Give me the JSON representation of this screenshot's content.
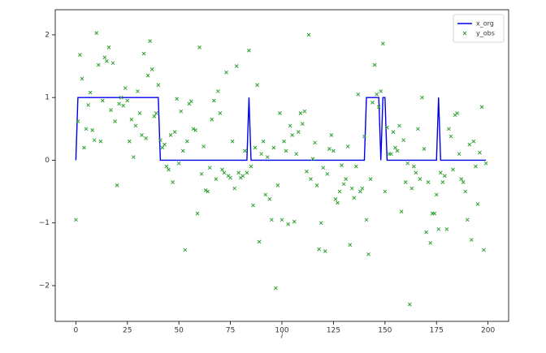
{
  "chart_data": {
    "type": "line",
    "xlabel": "i",
    "x": [
      0,
      1,
      2,
      3,
      4,
      5,
      6,
      7,
      8,
      9,
      10,
      11,
      12,
      13,
      14,
      15,
      16,
      17,
      18,
      19,
      20,
      21,
      22,
      23,
      24,
      25,
      26,
      27,
      28,
      29,
      30,
      31,
      32,
      33,
      34,
      35,
      36,
      37,
      38,
      39,
      40,
      41,
      42,
      43,
      44,
      45,
      46,
      47,
      48,
      49,
      50,
      51,
      52,
      53,
      54,
      55,
      56,
      57,
      58,
      59,
      60,
      61,
      62,
      63,
      64,
      65,
      66,
      67,
      68,
      69,
      70,
      71,
      72,
      73,
      74,
      75,
      76,
      77,
      78,
      79,
      80,
      81,
      82,
      83,
      84,
      85,
      86,
      87,
      88,
      89,
      90,
      91,
      92,
      93,
      94,
      95,
      96,
      97,
      98,
      99,
      100,
      101,
      102,
      103,
      104,
      105,
      106,
      107,
      108,
      109,
      110,
      111,
      112,
      113,
      114,
      115,
      116,
      117,
      118,
      119,
      120,
      121,
      122,
      123,
      124,
      125,
      126,
      127,
      128,
      129,
      130,
      131,
      132,
      133,
      134,
      135,
      136,
      137,
      138,
      139,
      140,
      141,
      142,
      143,
      144,
      145,
      146,
      147,
      148,
      149,
      150,
      151,
      152,
      153,
      154,
      155,
      156,
      157,
      158,
      159,
      160,
      161,
      162,
      163,
      164,
      165,
      166,
      167,
      168,
      169,
      170,
      171,
      172,
      173,
      174,
      175,
      176,
      177,
      178,
      179,
      180,
      181,
      182,
      183,
      184,
      185,
      186,
      187,
      188,
      189,
      190,
      191,
      192,
      193,
      194,
      195,
      196,
      197,
      198,
      199
    ],
    "series": [
      {
        "name": "x_org",
        "color": "#0000ee",
        "style": "line",
        "values": [
          0,
          1,
          1,
          1,
          1,
          1,
          1,
          1,
          1,
          1,
          1,
          1,
          1,
          1,
          1,
          1,
          1,
          1,
          1,
          1,
          1,
          1,
          1,
          1,
          1,
          1,
          1,
          1,
          1,
          1,
          1,
          1,
          1,
          1,
          1,
          1,
          1,
          1,
          1,
          1,
          1,
          0,
          0,
          0,
          0,
          0,
          0,
          0,
          0,
          0,
          0,
          0,
          0,
          0,
          0,
          0,
          0,
          0,
          0,
          0,
          0,
          0,
          0,
          0,
          0,
          0,
          0,
          0,
          0,
          0,
          0,
          0,
          0,
          0,
          0,
          0,
          0,
          0,
          0,
          0,
          0,
          0,
          0,
          0,
          1,
          0,
          0,
          0,
          0,
          0,
          0,
          0,
          0,
          0,
          0,
          0,
          0,
          0,
          0,
          0,
          0,
          0,
          0,
          0,
          0,
          0,
          0,
          0,
          0,
          0,
          0,
          0,
          0,
          0,
          0,
          0,
          0,
          0,
          0,
          0,
          0,
          0,
          0,
          0,
          0,
          0,
          0,
          0,
          0,
          0,
          0,
          0,
          0,
          0,
          0,
          0,
          0,
          0,
          0,
          0,
          0,
          1,
          1,
          1,
          1,
          1,
          1,
          1,
          0,
          1,
          1,
          0,
          0,
          0,
          0,
          0,
          0,
          0,
          0,
          0,
          0,
          0,
          0,
          0,
          0,
          0,
          0,
          0,
          0,
          0,
          0,
          0,
          0,
          0,
          0,
          0,
          1,
          0,
          0,
          0,
          0,
          0,
          0,
          0,
          0,
          0,
          0,
          0,
          0,
          0,
          0,
          0,
          0,
          0,
          0,
          0,
          0,
          0,
          0,
          0
        ]
      },
      {
        "name": "y_obs",
        "color": "#2ca02c",
        "style": "scatter",
        "values": [
          -0.95,
          0.62,
          1.68,
          1.3,
          0.2,
          0.5,
          0.88,
          1.08,
          0.48,
          0.32,
          2.03,
          1.52,
          0.3,
          0.95,
          1.64,
          1.58,
          1.8,
          0.8,
          1.55,
          0.62,
          -0.4,
          0.9,
          1.0,
          0.87,
          1.15,
          0.95,
          0.3,
          0.65,
          0.05,
          0.55,
          1.1,
          0.75,
          0.4,
          1.7,
          0.35,
          1.35,
          1.9,
          1.45,
          0.7,
          0.75,
          1.2,
          0.32,
          0.2,
          0.25,
          -0.1,
          -0.15,
          0.4,
          -0.35,
          0.45,
          0.98,
          -0.05,
          0.78,
          0.15,
          -1.43,
          0.3,
          0.9,
          0.94,
          0.5,
          0.48,
          -0.85,
          1.8,
          -0.22,
          0.22,
          -0.48,
          -0.5,
          -0.12,
          0.65,
          0.95,
          -0.3,
          1.1,
          0.75,
          -0.15,
          -0.2,
          1.4,
          -0.25,
          -0.28,
          0.3,
          -0.45,
          1.5,
          -0.2,
          -0.28,
          -0.25,
          0.15,
          -0.2,
          1.75,
          -0.1,
          -0.72,
          0.2,
          1.2,
          -1.3,
          0.1,
          0.3,
          -0.55,
          0.05,
          -0.62,
          -0.95,
          0.2,
          -2.04,
          -0.4,
          0.75,
          -0.95,
          0.3,
          0.15,
          -1.02,
          0.55,
          0.4,
          -0.98,
          0.1,
          0.45,
          0.75,
          0.58,
          0.78,
          -0.18,
          2.0,
          -0.3,
          0.02,
          0.28,
          -0.4,
          -1.42,
          -1.0,
          -0.12,
          -1.45,
          -0.22,
          0.18,
          0.4,
          0.15,
          -0.62,
          -0.68,
          -0.5,
          -0.08,
          -0.38,
          -0.3,
          0.22,
          -1.35,
          -0.45,
          -0.6,
          -0.1,
          1.05,
          -0.5,
          -0.45,
          0.38,
          -0.95,
          -1.5,
          -0.3,
          0.92,
          1.52,
          1.05,
          0.85,
          1.1,
          1.86,
          -0.5,
          0.52,
          0.1,
          0.1,
          0.45,
          0.2,
          0.15,
          0.55,
          -0.82,
          0.32,
          -0.35,
          -0.05,
          -2.3,
          -0.45,
          -0.1,
          -0.2,
          0.5,
          -0.3,
          1.0,
          0.18,
          -1.15,
          -0.35,
          -1.32,
          -0.85,
          -0.85,
          -0.55,
          -1.1,
          -0.2,
          -0.35,
          -0.25,
          -1.1,
          0.5,
          0.38,
          -0.15,
          0.72,
          0.75,
          0.1,
          -0.3,
          -0.35,
          -0.5,
          -0.95,
          0.25,
          -1.27,
          0.3,
          -0.1,
          -0.7,
          0.12,
          0.85,
          -1.43,
          -0.05
        ]
      }
    ],
    "xlim": [
      -10,
      210
    ],
    "ylim": [
      -2.57,
      2.4
    ],
    "xticks": [
      0,
      25,
      50,
      75,
      100,
      125,
      150,
      175,
      200
    ],
    "yticks": [
      {
        "value": -2,
        "label": "−2"
      },
      {
        "value": -1,
        "label": "−1"
      },
      0,
      1,
      2
    ],
    "legend": "upper right"
  }
}
